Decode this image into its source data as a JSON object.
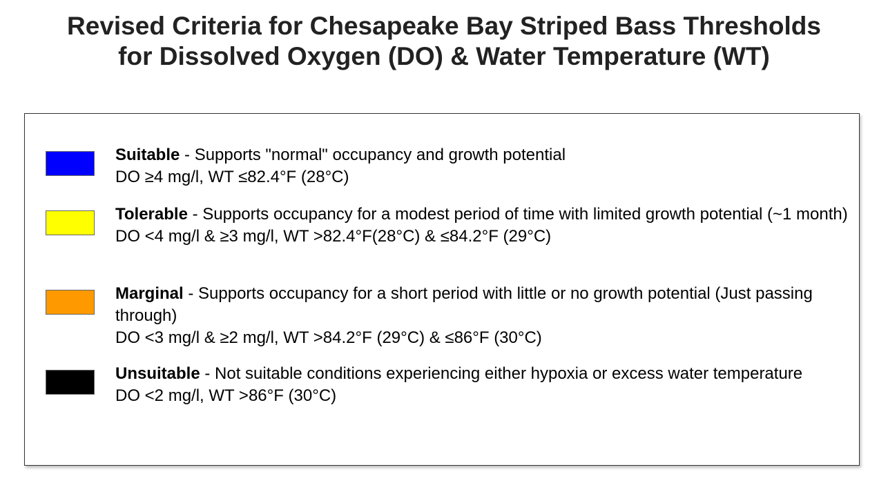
{
  "title": {
    "line1": "Revised Criteria for Chesapeake Bay Striped Bass Thresholds",
    "line2": "for Dissolved Oxygen (DO) & Water Temperature (WT)"
  },
  "legend": [
    {
      "name": "Suitable",
      "color": "#0000ff",
      "description": " - Supports \"normal\" occupancy and growth potential",
      "criteria": "DO ≥4 mg/l, WT ≤82.4°F (28°C)"
    },
    {
      "name": "Tolerable",
      "color": "#ffff00",
      "description": " - Supports occupancy for a modest period of time with limited growth potential (~1 month)",
      "criteria": "DO <4 mg/l & ≥3 mg/l, WT >82.4°F(28°C) & ≤84.2°F (29°C)"
    },
    {
      "name": "Marginal",
      "color": "#ff9900",
      "description": " - Supports occupancy for a short period with little or no growth potential (Just passing through)",
      "criteria": "DO <3 mg/l & ≥2 mg/l, WT >84.2°F (29°C) & ≤86°F (30°C)"
    },
    {
      "name": "Unsuitable",
      "color": "#000000",
      "description": " - Not suitable conditions experiencing either hypoxia or excess water temperature",
      "criteria": "DO <2 mg/l, WT >86°F (30°C)"
    }
  ]
}
